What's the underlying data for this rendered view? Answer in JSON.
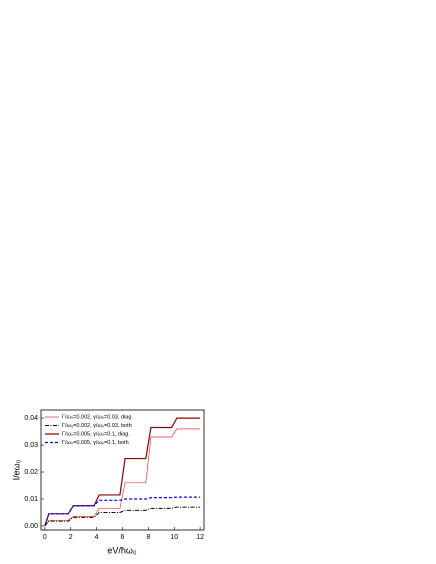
{
  "chart_data": {
    "type": "line",
    "x_label": "eV/ħω₀",
    "y_label": "I/eω₀",
    "x": [
      0,
      0.3,
      1.8,
      2.2,
      3.8,
      4.2,
      5.8,
      6.2,
      7.8,
      8.2,
      9.8,
      10.2,
      12
    ],
    "series": [
      {
        "name": "Γ/ω₀=0.002, γ/ω₀=0.03, diag.",
        "color": "#ff3030",
        "dash": "none",
        "width": 0.7,
        "values": [
          0,
          0.002,
          0.002,
          0.0035,
          0.0035,
          0.0065,
          0.0065,
          0.016,
          0.016,
          0.033,
          0.033,
          0.036,
          0.036
        ]
      },
      {
        "name": "Γ/ω₀=0.002, γ/ω₀=0.03, both",
        "color": "#000000",
        "dash": "4 1.5 1 1.5",
        "width": 1,
        "values": [
          0,
          0.0018,
          0.0018,
          0.0032,
          0.0032,
          0.005,
          0.005,
          0.0058,
          0.0058,
          0.0065,
          0.0065,
          0.007,
          0.007
        ]
      },
      {
        "name": "Γ/ω₀=0.005, γ/ω₀=0.1, diag.",
        "color": "#8b0000",
        "dash": "none",
        "width": 1.2,
        "values": [
          0,
          0.0045,
          0.0045,
          0.0075,
          0.0075,
          0.0115,
          0.0115,
          0.025,
          0.025,
          0.0365,
          0.0365,
          0.04,
          0.04
        ]
      },
      {
        "name": "Γ/ω₀=0.005, γ/ω₀=0.1, both",
        "color": "#0000ff",
        "dash": "3 2",
        "width": 1.2,
        "values": [
          0,
          0.0045,
          0.0045,
          0.0075,
          0.0075,
          0.0095,
          0.0095,
          0.01,
          0.01,
          0.0105,
          0.0105,
          0.0107,
          0.0107
        ]
      }
    ],
    "xlim": [
      -0.3,
      12.3
    ],
    "ylim": [
      -0.0015,
      0.043
    ],
    "xticks": [
      0,
      2,
      4,
      6,
      8,
      10,
      12
    ],
    "yticks": [
      {
        "value": 0,
        "label": "0.00"
      },
      0.01,
      0.02,
      0.03,
      0.04
    ],
    "legend": "upper left",
    "grid": false
  }
}
